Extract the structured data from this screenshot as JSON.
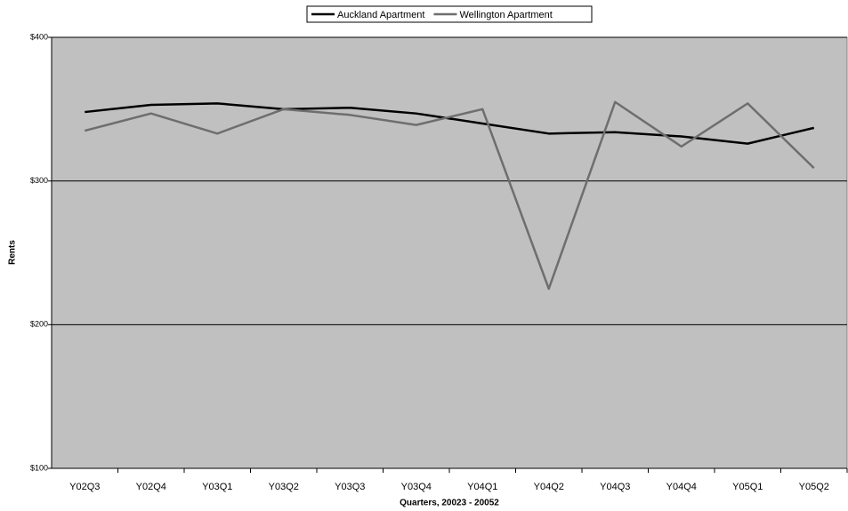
{
  "chart_data": {
    "type": "line",
    "x_label": "Quarters, 20023 - 20052",
    "y_label": "Rents",
    "categories": [
      "Y02Q3",
      "Y02Q4",
      "Y03Q1",
      "Y03Q2",
      "Y03Q3",
      "Y03Q4",
      "Y04Q1",
      "Y04Q2",
      "Y04Q3",
      "Y04Q4",
      "Y05Q1",
      "Y05Q2"
    ],
    "series": [
      {
        "name": "Auckland Apartment",
        "color": "#000000",
        "values": [
          348,
          353,
          354,
          350,
          351,
          347,
          340,
          333,
          334,
          331,
          326,
          337
        ]
      },
      {
        "name": "Wellington Apartment",
        "color": "#6e6e6e",
        "values": [
          335,
          347,
          333,
          350,
          346,
          339,
          350,
          225,
          355,
          324,
          354,
          309
        ]
      }
    ],
    "ylim": [
      100,
      400
    ],
    "yticks": [
      {
        "value": 100,
        "label": "$100"
      },
      {
        "value": 200,
        "label": "$200"
      },
      {
        "value": 300,
        "label": "$300"
      },
      {
        "value": 400,
        "label": "$400"
      }
    ],
    "grid": true,
    "legend": "top"
  }
}
